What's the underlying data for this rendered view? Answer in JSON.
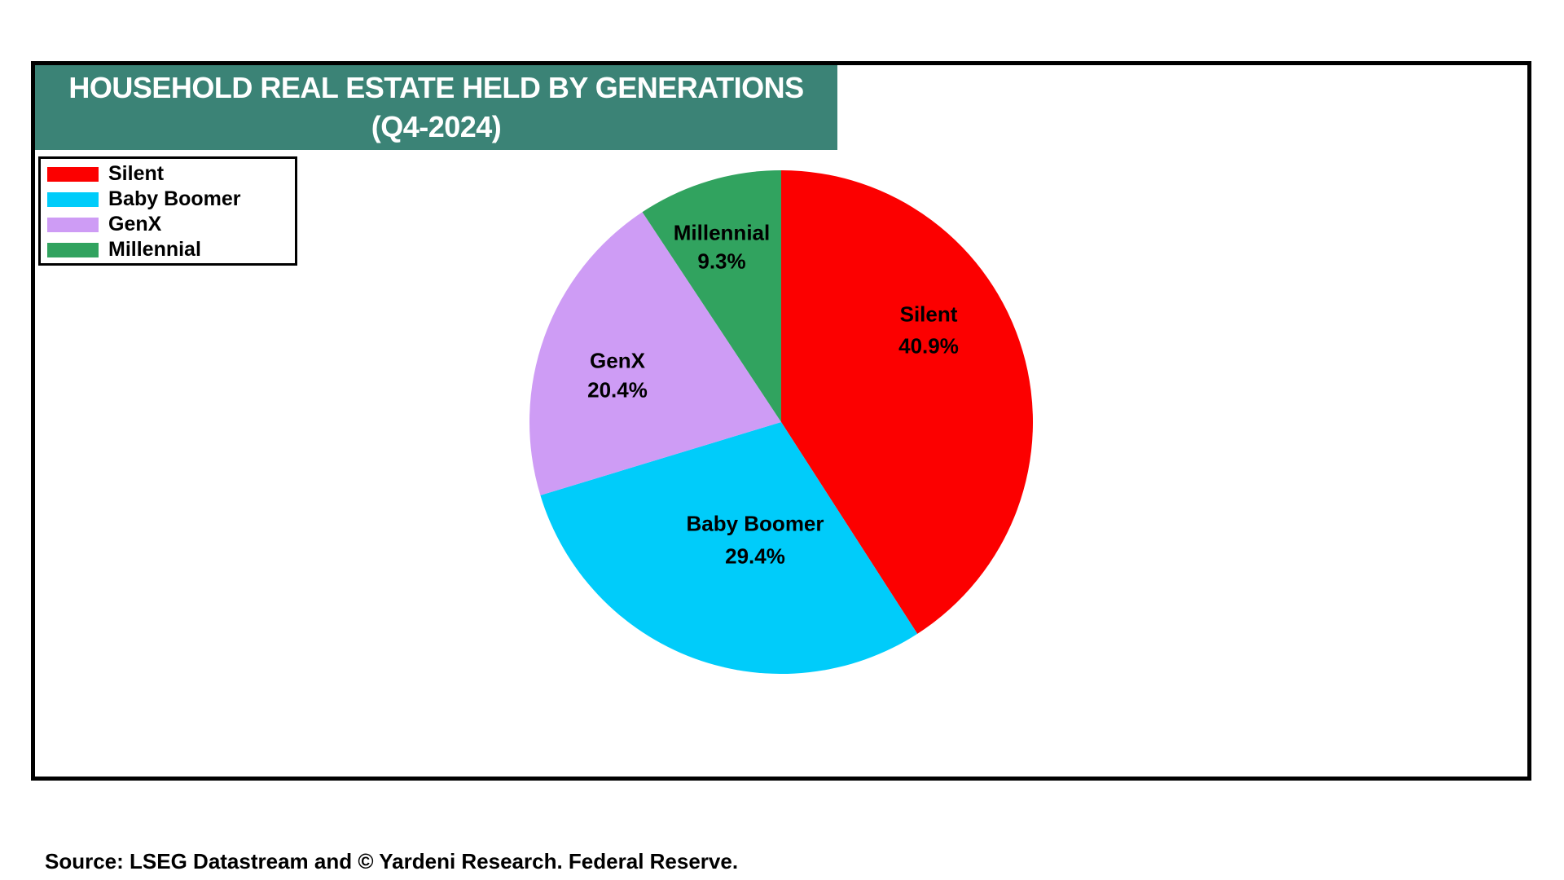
{
  "header": {
    "line1": "HOUSEHOLD REAL ESTATE HELD BY GENERATIONS",
    "line2": "(Q4-2024)",
    "bg_color": "#3b8376",
    "text_color": "#ffffff"
  },
  "source": "Source: LSEG Datastream and © Yardeni Research. Federal Reserve.",
  "chart_data": {
    "type": "pie",
    "title": "HOUSEHOLD REAL ESTATE HELD BY GENERATIONS (Q4-2024)",
    "start_angle": "12-o'clock",
    "direction": "clockwise",
    "legend_position": "top-left",
    "slices": [
      {
        "label": "Silent",
        "value": 40.9,
        "display": "40.9%",
        "color": "#fc0000"
      },
      {
        "label": "Baby Boomer",
        "value": 29.4,
        "display": "29.4%",
        "color": "#00ccfa"
      },
      {
        "label": "GenX",
        "value": 20.4,
        "display": "20.4%",
        "color": "#ce9cf5"
      },
      {
        "label": "Millennial",
        "value": 9.3,
        "display": "9.3%",
        "color": "#31a35f"
      }
    ]
  }
}
